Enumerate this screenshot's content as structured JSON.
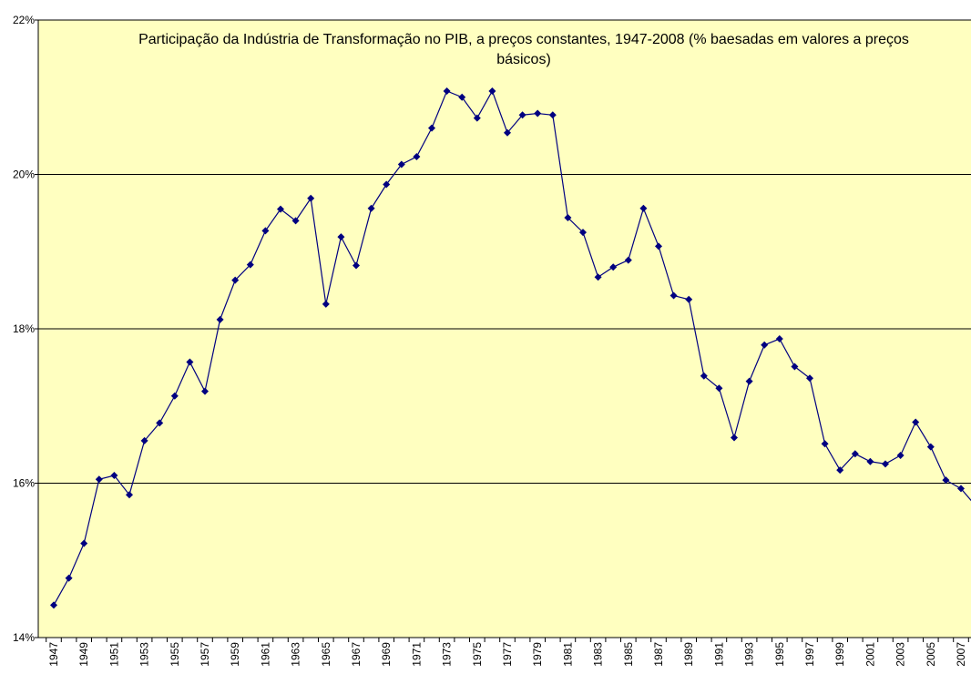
{
  "chart_data": {
    "type": "line",
    "title": "Participação da Indústria de Transformação no PIB, a preços constantes, 1947-2008 (% baesadas em valores a preços básicos)",
    "categories": [
      "1947",
      null,
      "1949",
      null,
      "1951",
      null,
      "1953",
      null,
      "1955",
      null,
      "1957",
      null,
      "1959",
      null,
      "1961",
      null,
      "1963",
      null,
      "1965",
      null,
      "1967",
      null,
      "1969",
      null,
      "1971",
      null,
      "1973",
      null,
      "1975",
      null,
      "1977",
      null,
      "1979",
      null,
      "1981",
      null,
      "1983",
      null,
      "1985",
      null,
      "1987",
      null,
      "1989",
      null,
      "1991",
      null,
      "1993",
      null,
      "1995",
      null,
      "1997",
      null,
      "1999",
      null,
      "2001",
      null,
      "2003",
      null,
      "2005",
      null,
      "2007",
      null
    ],
    "series": [
      {
        "color": "#000080",
        "values": [
          14.42,
          14.77,
          15.22,
          16.05,
          16.1,
          15.85,
          16.55,
          16.78,
          17.13,
          17.57,
          17.19,
          18.12,
          18.63,
          18.83,
          19.27,
          19.55,
          19.4,
          19.69,
          18.32,
          19.19,
          18.82,
          19.56,
          19.87,
          20.13,
          20.23,
          20.6,
          21.08,
          21.0,
          20.73,
          21.08,
          20.54,
          20.77,
          20.79,
          20.77,
          19.44,
          19.25,
          18.67,
          18.8,
          18.89,
          19.56,
          19.07,
          18.43,
          18.38,
          17.39,
          17.23,
          16.59,
          17.32,
          17.79,
          17.87,
          17.51,
          17.36,
          16.51,
          16.17,
          16.38,
          16.28,
          16.25,
          16.36,
          16.79,
          16.47,
          16.04,
          15.93,
          15.7
        ]
      }
    ],
    "ylim": [
      14,
      22
    ],
    "yticks": [
      {
        "value": 14,
        "label": "14%"
      },
      {
        "value": 16,
        "label": "16%"
      },
      {
        "value": 18,
        "label": "18%"
      },
      {
        "value": 20,
        "label": "20%"
      },
      {
        "value": 22,
        "label": "22%"
      }
    ],
    "grid": true,
    "background": "#ffffc0"
  }
}
